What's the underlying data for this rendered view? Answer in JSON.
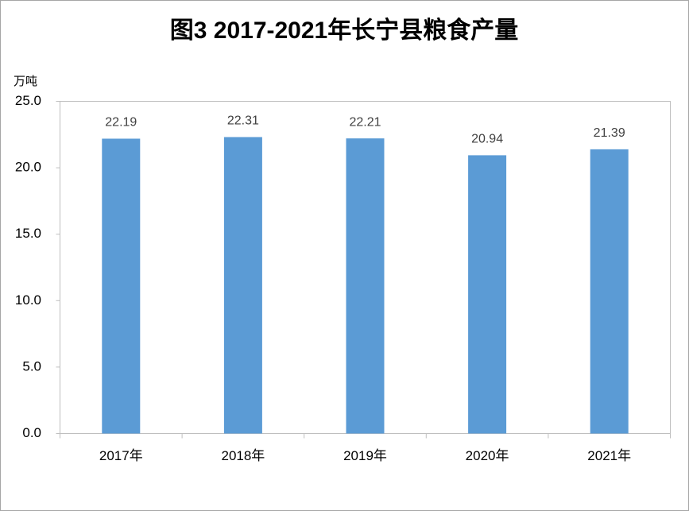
{
  "chart_data": {
    "type": "bar",
    "title": "图3 2017-2021年长宁县粮食产量",
    "y_label": "万吨",
    "categories": [
      "2017年",
      "2018年",
      "2019年",
      "2020年",
      "2021年"
    ],
    "values": [
      22.19,
      22.31,
      22.21,
      20.94,
      21.39
    ],
    "color": "#5b9bd5",
    "ylim": [
      0,
      25
    ],
    "yticks": [
      {
        "value": 0,
        "label": "0.0"
      },
      {
        "value": 5,
        "label": "5.0"
      },
      {
        "value": 10,
        "label": "10.0"
      },
      {
        "value": 15,
        "label": "15.0"
      },
      {
        "value": 20,
        "label": "20.0"
      },
      {
        "value": 25,
        "label": "25.0"
      }
    ],
    "grid": false
  }
}
